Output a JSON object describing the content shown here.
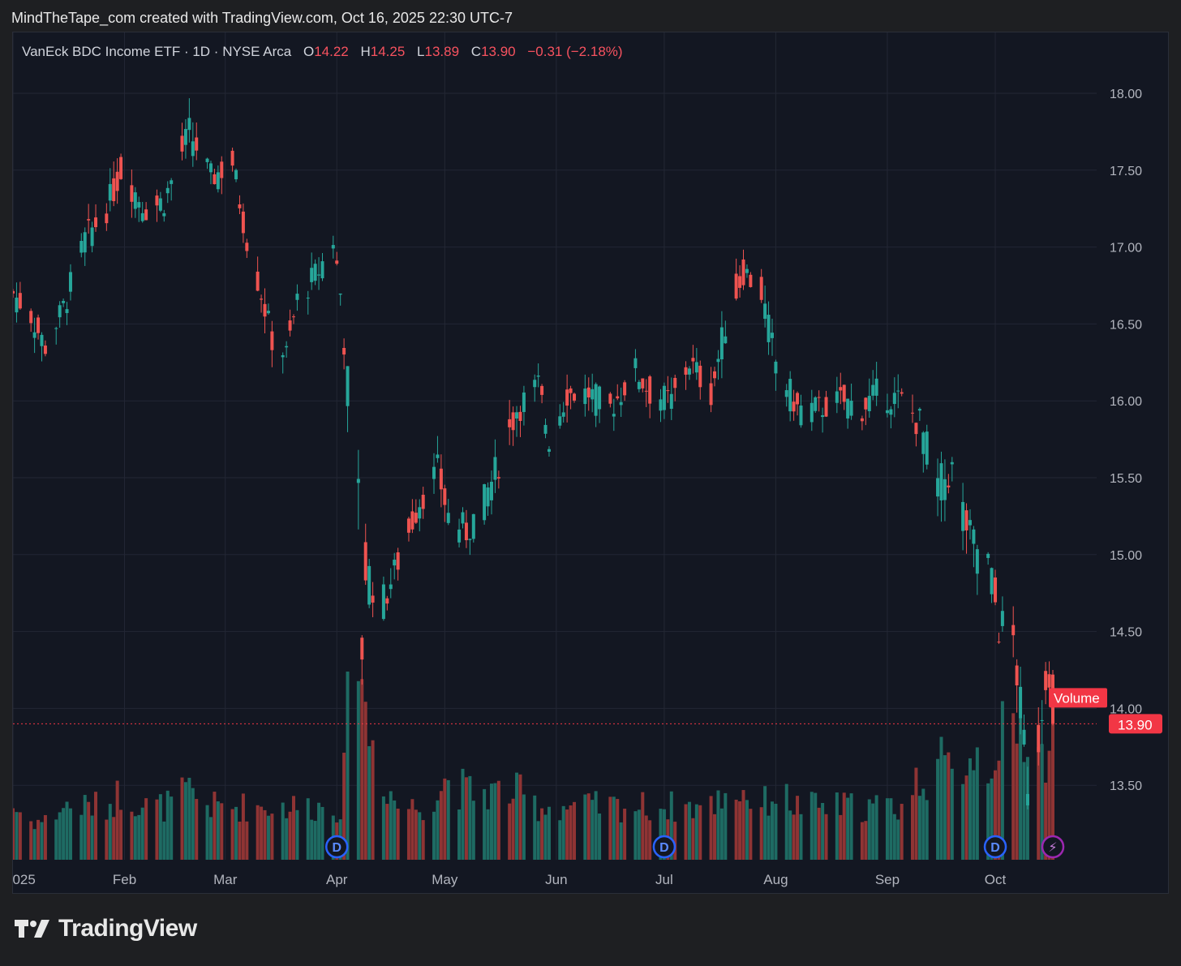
{
  "caption": "MindTheTape_com created with TradingView.com, Oct 16, 2025 22:30 UTC-7",
  "legend": {
    "symbol": "VanEck BDC Income ETF · 1D · NYSE Arca",
    "o_label": "O",
    "o_value": "14.22",
    "h_label": "H",
    "h_value": "14.25",
    "l_label": "L",
    "l_value": "13.89",
    "c_label": "C",
    "c_value": "13.90",
    "change": "−0.31 (−2.18%)"
  },
  "brand": {
    "name": "TradingView",
    "logo_icon": "tradingview-logo-icon"
  },
  "colors": {
    "up": "#26a69a",
    "down": "#ef5350",
    "up_volume": "#1e6b63",
    "down_volume": "#8f3434",
    "price_tag": "#f23645",
    "background": "#131722"
  },
  "chart_data": {
    "type": "candlestick",
    "title": "VanEck BDC Income ETF · 1D · NYSE Arca",
    "ylim": [
      13.1,
      18.2
    ],
    "yticks": [
      "18.00",
      "17.50",
      "17.00",
      "16.50",
      "16.00",
      "15.50",
      "15.00",
      "14.50",
      "14.00",
      "13.50"
    ],
    "ytick_values": [
      18.0,
      17.5,
      17.0,
      16.5,
      16.0,
      15.5,
      15.0,
      14.5,
      14.0,
      13.5
    ],
    "xticks": [
      {
        "label": "2025",
        "date": "2025-01-01"
      },
      {
        "label": "Feb",
        "date": "2025-02-01"
      },
      {
        "label": "Mar",
        "date": "2025-03-01"
      },
      {
        "label": "Apr",
        "date": "2025-04-01"
      },
      {
        "label": "May",
        "date": "2025-05-01"
      },
      {
        "label": "Jun",
        "date": "2025-06-01"
      },
      {
        "label": "Jul",
        "date": "2025-07-01"
      },
      {
        "label": "Aug",
        "date": "2025-08-01"
      },
      {
        "label": "Sep",
        "date": "2025-09-01"
      },
      {
        "label": "Oct",
        "date": "2025-10-01"
      }
    ],
    "last_price": {
      "value": 13.9,
      "label": "13.90"
    },
    "volume_label": "Volume",
    "grid": true,
    "events": [
      {
        "date": "2025-04-01",
        "label": "D"
      },
      {
        "date": "2025-07-01",
        "label": "D"
      },
      {
        "date": "2025-10-01",
        "label": "D"
      },
      {
        "date": "2025-10-17",
        "label": "⚡"
      }
    ],
    "anchors": [
      [
        "2025-01-01",
        16.7,
        3
      ],
      [
        "2025-01-06",
        16.55,
        2
      ],
      [
        "2025-01-10",
        16.35,
        2
      ],
      [
        "2025-01-15",
        16.6,
        3
      ],
      [
        "2025-01-21",
        17.05,
        3
      ],
      [
        "2025-01-27",
        17.25,
        3
      ],
      [
        "2025-01-31",
        17.5,
        4
      ],
      [
        "2025-02-07",
        17.25,
        3
      ],
      [
        "2025-02-12",
        17.3,
        3
      ],
      [
        "2025-02-19",
        17.75,
        4
      ],
      [
        "2025-02-25",
        17.45,
        3
      ],
      [
        "2025-03-03",
        17.55,
        3
      ],
      [
        "2025-03-07",
        17.05,
        3
      ],
      [
        "2025-03-11",
        16.7,
        3
      ],
      [
        "2025-03-14",
        16.4,
        3
      ],
      [
        "2025-03-18",
        16.3,
        3
      ],
      [
        "2025-03-21",
        16.65,
        3
      ],
      [
        "2025-03-27",
        16.85,
        3
      ],
      [
        "2025-03-31",
        17.05,
        3
      ],
      [
        "2025-04-02",
        16.7,
        3
      ],
      [
        "2025-04-03",
        16.4,
        5
      ],
      [
        "2025-04-04",
        16.1,
        9
      ],
      [
        "2025-04-07",
        15.3,
        18
      ],
      [
        "2025-04-08",
        14.4,
        13
      ],
      [
        "2025-04-09",
        14.9,
        9
      ],
      [
        "2025-04-14",
        14.7,
        5
      ],
      [
        "2025-04-18",
        14.95,
        3
      ],
      [
        "2025-04-24",
        15.35,
        3
      ],
      [
        "2025-04-29",
        15.55,
        4
      ],
      [
        "2025-05-02",
        15.25,
        5
      ],
      [
        "2025-05-07",
        15.15,
        4
      ],
      [
        "2025-05-12",
        15.35,
        4
      ],
      [
        "2025-05-16",
        15.6,
        4
      ],
      [
        "2025-05-21",
        15.95,
        4
      ],
      [
        "2025-05-27",
        16.1,
        3
      ],
      [
        "2025-05-30",
        15.75,
        3
      ],
      [
        "2025-06-04",
        16.05,
        3
      ],
      [
        "2025-06-10",
        16.05,
        3
      ],
      [
        "2025-06-16",
        15.95,
        3
      ],
      [
        "2025-06-23",
        16.2,
        3
      ],
      [
        "2025-06-27",
        16.05,
        3
      ],
      [
        "2025-07-03",
        16.0,
        3
      ],
      [
        "2025-07-08",
        16.25,
        3
      ],
      [
        "2025-07-14",
        16.05,
        3
      ],
      [
        "2025-07-18",
        16.5,
        4
      ],
      [
        "2025-07-23",
        16.85,
        4
      ],
      [
        "2025-07-28",
        16.7,
        3
      ],
      [
        "2025-08-01",
        16.25,
        4
      ],
      [
        "2025-08-07",
        15.95,
        3
      ],
      [
        "2025-08-13",
        15.95,
        3
      ],
      [
        "2025-08-19",
        16.0,
        3
      ],
      [
        "2025-08-25",
        15.95,
        3
      ],
      [
        "2025-08-29",
        16.05,
        3
      ],
      [
        "2025-09-05",
        16.0,
        3
      ],
      [
        "2025-09-10",
        15.85,
        5
      ],
      [
        "2025-09-15",
        15.45,
        6
      ],
      [
        "2025-09-19",
        15.55,
        5
      ],
      [
        "2025-09-24",
        15.1,
        7
      ],
      [
        "2025-09-29",
        14.95,
        6
      ],
      [
        "2025-10-02",
        14.55,
        8
      ],
      [
        "2025-10-06",
        14.45,
        7
      ],
      [
        "2025-10-10",
        13.55,
        9
      ],
      [
        "2025-10-13",
        13.8,
        7
      ],
      [
        "2025-10-15",
        14.25,
        6
      ],
      [
        "2025-10-17",
        13.9,
        8
      ]
    ]
  }
}
